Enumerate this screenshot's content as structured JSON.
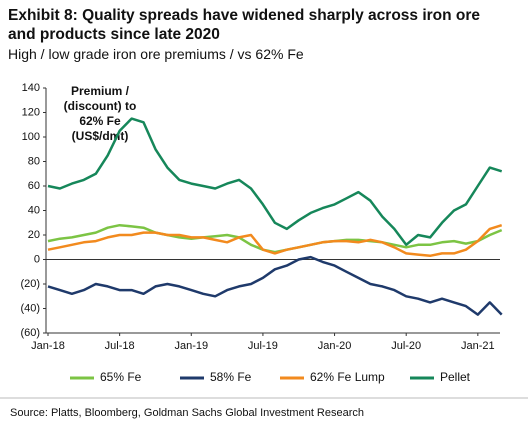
{
  "chart_data": {
    "type": "line",
    "title": "Exhibit 8: Quality spreads have widened sharply across iron ore and products since late 2020",
    "subtitle": "High / low grade iron ore premiums / vs 62% Fe",
    "annotation": [
      "Premium /",
      "(discount)  to",
      "62% Fe",
      "(US$/dmt)"
    ],
    "source": "Source: Platts, Bloomberg, Goldman Sachs Global Investment Research",
    "categories": [
      "Jan-18",
      null,
      null,
      null,
      null,
      null,
      "Jul-18",
      null,
      null,
      null,
      null,
      null,
      "Jan-19",
      null,
      null,
      null,
      null,
      null,
      "Jul-19",
      null,
      null,
      null,
      null,
      null,
      "Jan-20",
      null,
      null,
      null,
      null,
      null,
      "Jul-20",
      null,
      null,
      null,
      null,
      null,
      "Jan-21",
      null,
      null
    ],
    "series": [
      {
        "name": "65% Fe",
        "color": "#7cc444",
        "values": [
          15,
          17,
          18,
          20,
          22,
          26,
          28,
          27,
          26,
          22,
          20,
          18,
          17,
          18,
          19,
          20,
          18,
          12,
          8,
          6,
          8,
          10,
          12,
          14,
          15,
          16,
          16,
          15,
          14,
          12,
          10,
          12,
          12,
          14,
          15,
          13,
          15,
          20,
          24
        ]
      },
      {
        "name": "58% Fe",
        "color": "#1f3a6b",
        "values": [
          -22,
          -25,
          -28,
          -25,
          -20,
          -22,
          -25,
          -25,
          -28,
          -22,
          -20,
          -22,
          -25,
          -28,
          -30,
          -25,
          -22,
          -20,
          -15,
          -8,
          -5,
          0,
          2,
          -2,
          -5,
          -10,
          -15,
          -20,
          -22,
          -25,
          -30,
          -32,
          -35,
          -32,
          -35,
          -38,
          -45,
          -35,
          -45
        ]
      },
      {
        "name": "62% Fe Lump",
        "color": "#f28a1e",
        "values": [
          8,
          10,
          12,
          14,
          15,
          18,
          20,
          20,
          22,
          22,
          20,
          20,
          18,
          18,
          16,
          14,
          18,
          20,
          8,
          5,
          8,
          10,
          12,
          14,
          15,
          15,
          14,
          16,
          14,
          10,
          5,
          4,
          3,
          5,
          5,
          8,
          15,
          25,
          28
        ]
      },
      {
        "name": "Pellet",
        "color": "#16875a",
        "values": [
          60,
          58,
          62,
          65,
          70,
          85,
          105,
          115,
          112,
          90,
          75,
          65,
          62,
          60,
          58,
          62,
          65,
          58,
          45,
          30,
          25,
          32,
          38,
          42,
          45,
          50,
          55,
          48,
          35,
          25,
          12,
          20,
          18,
          30,
          40,
          45,
          60,
          75,
          72
        ]
      }
    ],
    "ylim": [
      -60,
      140
    ],
    "yticks": [
      {
        "value": -60,
        "label": "(60)"
      },
      {
        "value": -40,
        "label": "(40)"
      },
      {
        "value": -20,
        "label": "(20)"
      },
      0,
      20,
      40,
      60,
      80,
      100,
      120,
      140
    ],
    "grid": false
  }
}
